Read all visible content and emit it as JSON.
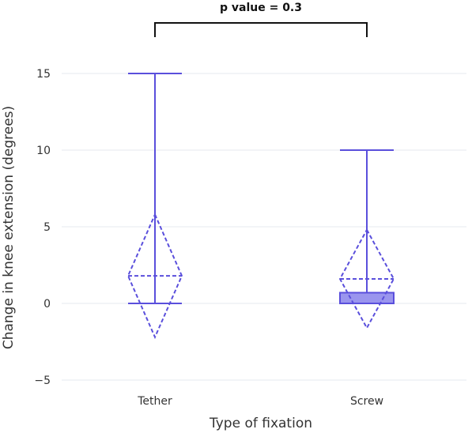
{
  "chart_data": {
    "type": "box",
    "title": "",
    "xlabel": "Type of fixation",
    "ylabel": "Change in knee extension (degrees)",
    "ylim": [
      -6,
      16.5
    ],
    "yticks": [
      -5,
      0,
      5,
      10,
      15
    ],
    "ytick_labels": [
      "−5",
      "0",
      "5",
      "10",
      "15"
    ],
    "grid": true,
    "color": "#5a4fdc",
    "fill_color": "#9a95ee",
    "categories": [
      "Tether",
      "Screw"
    ],
    "series": [
      {
        "category": "Tether",
        "min": 0,
        "q1": 0,
        "median": 0,
        "q3": 0,
        "max": 15,
        "mean": 1.8,
        "sd": 4.0
      },
      {
        "category": "Screw",
        "min": 0,
        "q1": 0,
        "median": 0,
        "q3": 0.7,
        "max": 10,
        "mean": 1.6,
        "sd": 3.2
      }
    ],
    "annotation": {
      "text": "p value = 0.3",
      "between": [
        "Tether",
        "Screw"
      ]
    }
  }
}
